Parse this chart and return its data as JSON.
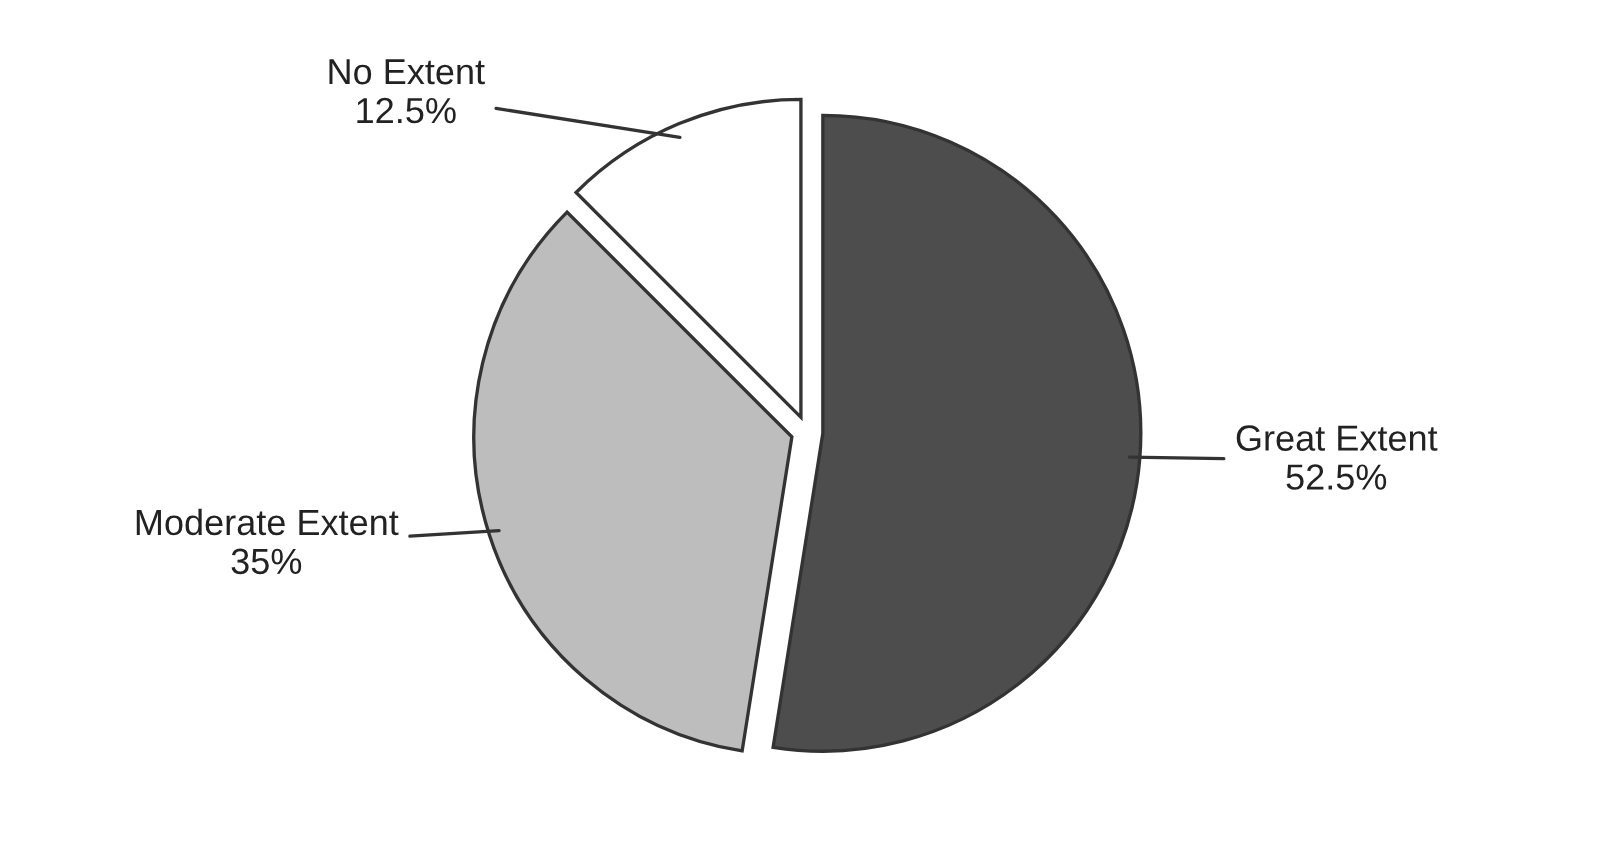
{
  "chart_data": {
    "type": "pie",
    "categories": [
      "Great Extent",
      "Moderate Extent",
      "No Extent"
    ],
    "values": [
      52.5,
      35,
      12.5
    ],
    "value_labels": [
      "52.5%",
      "35%",
      "12.5%"
    ],
    "colors": [
      "#4d4d4d",
      "#bdbdbd",
      "#ffffff"
    ]
  }
}
